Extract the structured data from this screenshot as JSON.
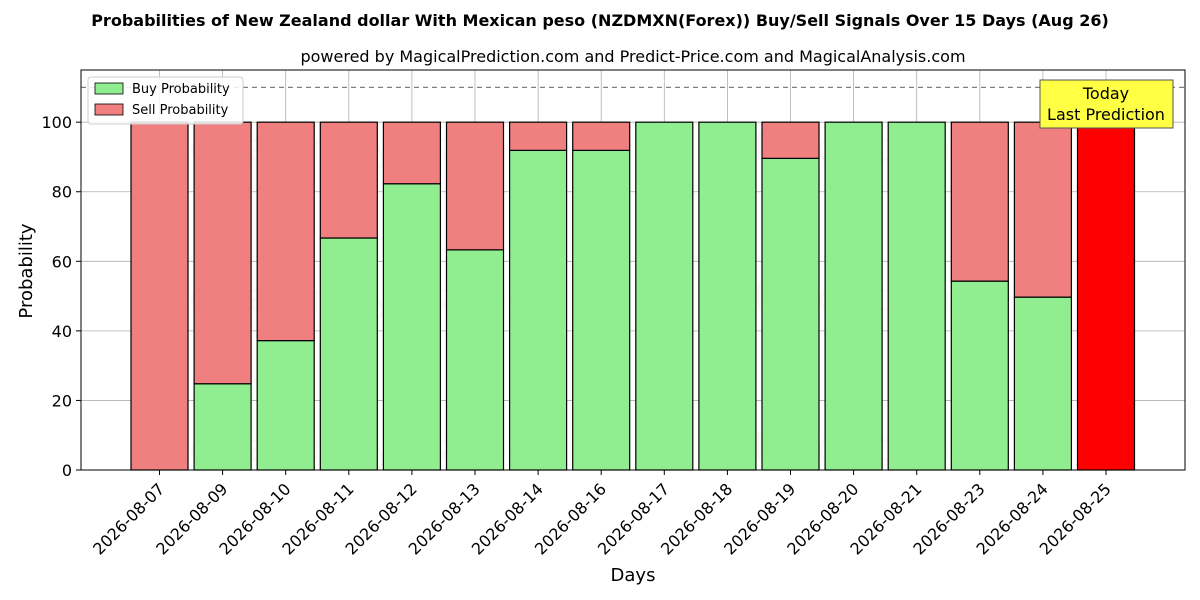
{
  "chart_data": {
    "type": "bar",
    "stacked": true,
    "title": "Probabilities of New Zealand dollar With Mexican peso (NZDMXN(Forex)) Buy/Sell Signals Over 15 Days (Aug 26)",
    "subtitle": "powered by MagicalPrediction.com and Predict-Price.com and MagicalAnalysis.com",
    "xlabel": "Days",
    "ylabel": "Probability",
    "ylim": [
      0,
      115
    ],
    "yticks": [
      0,
      20,
      40,
      60,
      80,
      100
    ],
    "grid": true,
    "reference_line": 110,
    "legend_position": "top-left",
    "categories": [
      "2026-08-07",
      "2026-08-09",
      "2026-08-10",
      "2026-08-11",
      "2026-08-12",
      "2026-08-13",
      "2026-08-14",
      "2026-08-16",
      "2026-08-17",
      "2026-08-18",
      "2026-08-19",
      "2026-08-20",
      "2026-08-21",
      "2026-08-23",
      "2026-08-24",
      "2026-08-25"
    ],
    "series": [
      {
        "name": "Buy Probability",
        "color": "#90ee90",
        "values": [
          0,
          24.8,
          37.2,
          66.7,
          82.3,
          63.3,
          91.9,
          91.9,
          100,
          100,
          89.6,
          100,
          100,
          54.3,
          49.7,
          0
        ]
      },
      {
        "name": "Sell Probability",
        "color": "#f08080",
        "values": [
          100,
          75.2,
          62.8,
          33.3,
          17.7,
          36.7,
          8.1,
          8.1,
          0,
          0,
          10.4,
          0,
          0,
          45.7,
          50.3,
          100
        ]
      }
    ],
    "highlight": {
      "index": 15,
      "color": "#ff0000"
    },
    "annotation": {
      "lines": [
        "Today",
        "Last Prediction"
      ],
      "background": "#ffff44"
    },
    "watermarks": [
      "MagicalAnalysis.com",
      "MagicalPrediction.com"
    ]
  }
}
